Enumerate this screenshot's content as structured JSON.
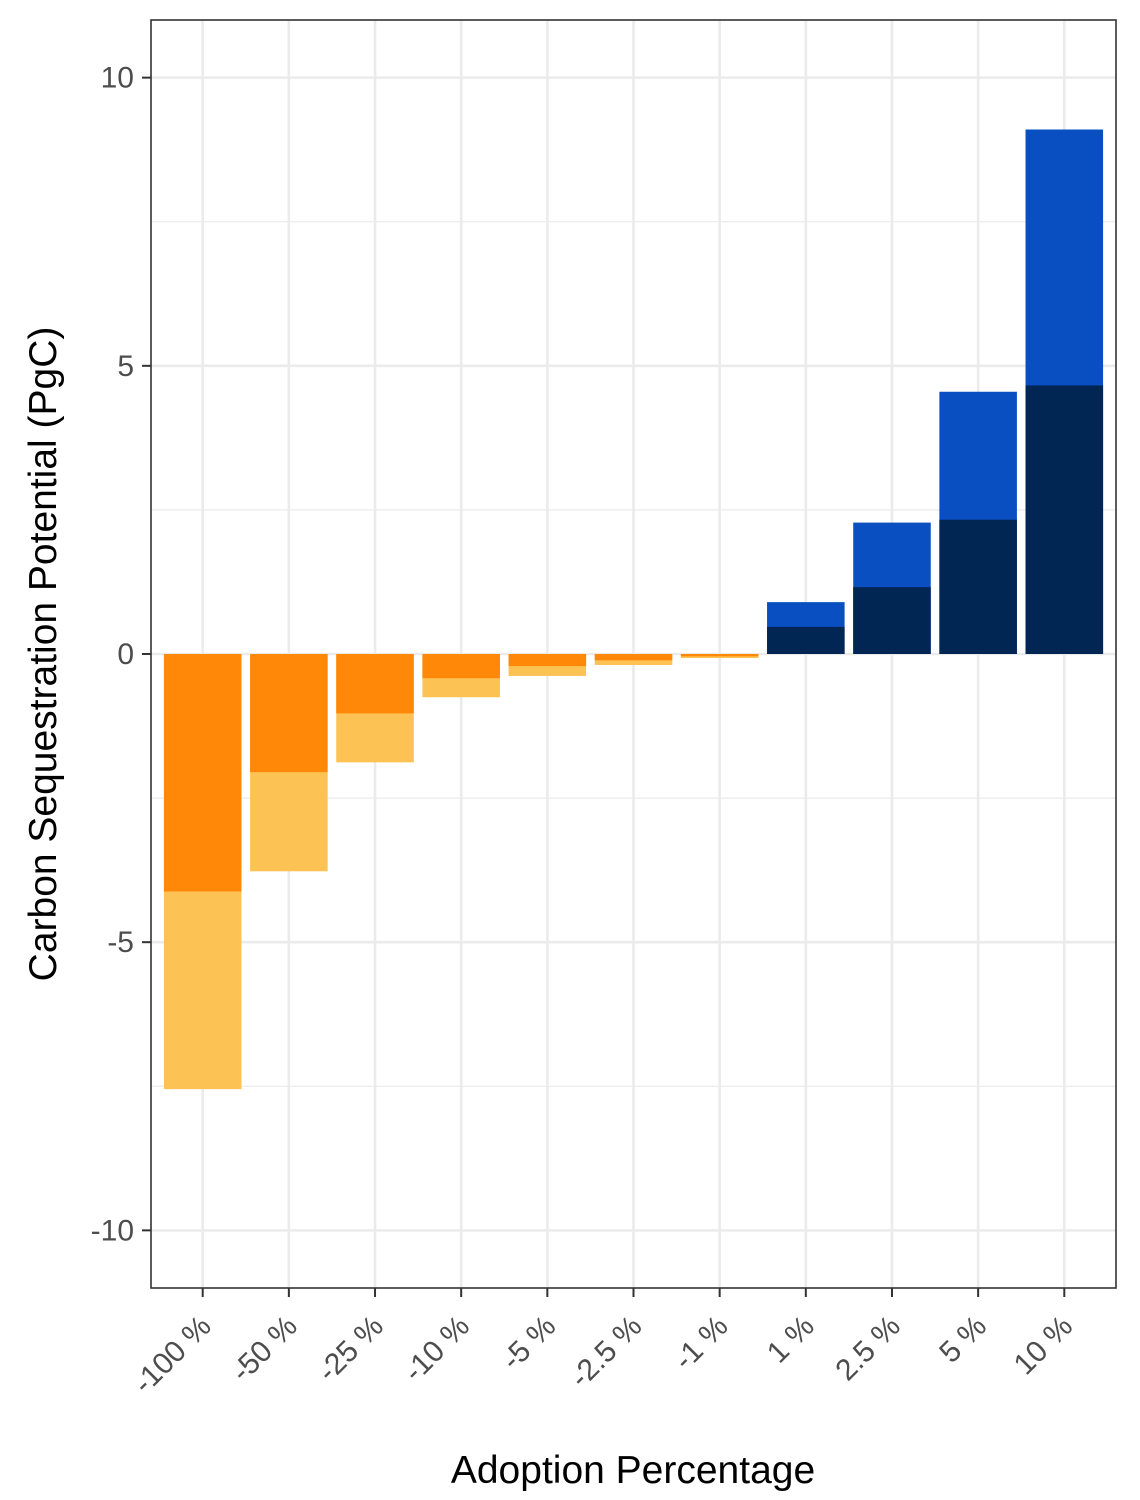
{
  "chart_data": {
    "type": "bar",
    "stacked": "overlay",
    "xlabel": "Adoption Percentage",
    "ylabel": "Carbon Sequestration Potential (PgC)",
    "ylim": [
      -11,
      11
    ],
    "yticks": [
      -10,
      -5,
      0,
      5,
      10
    ],
    "ytick_labels": [
      "-10",
      "-5",
      "0",
      "5",
      "10"
    ],
    "grid": true,
    "legend": "none",
    "categories": [
      "-100 %",
      "-50 %",
      "-25 %",
      "-10 %",
      "-5 %",
      "-2.5 %",
      "-1 %",
      "1 %",
      "2.5 %",
      "5 %",
      "10 %"
    ],
    "series": [
      {
        "values": [
          -7.55,
          -3.77,
          -1.88,
          -0.75,
          -0.38,
          -0.19,
          -0.07,
          0.9,
          2.28,
          4.55,
          9.1
        ],
        "colors": [
          "#fdc254",
          "#fdc254",
          "#fdc254",
          "#fdc254",
          "#fdc254",
          "#fdc254",
          "#fdc254",
          "#0a4fc2",
          "#0a4fc2",
          "#0a4fc2",
          "#0a4fc2"
        ]
      },
      {
        "values": [
          -4.12,
          -2.05,
          -1.03,
          -0.42,
          -0.21,
          -0.11,
          -0.04,
          0.47,
          1.16,
          2.33,
          4.66
        ],
        "colors": [
          "#ff8808",
          "#ff8808",
          "#ff8808",
          "#ff8808",
          "#ff8808",
          "#ff8808",
          "#ff8808",
          "#022654",
          "#022654",
          "#022654",
          "#022654"
        ]
      }
    ]
  }
}
